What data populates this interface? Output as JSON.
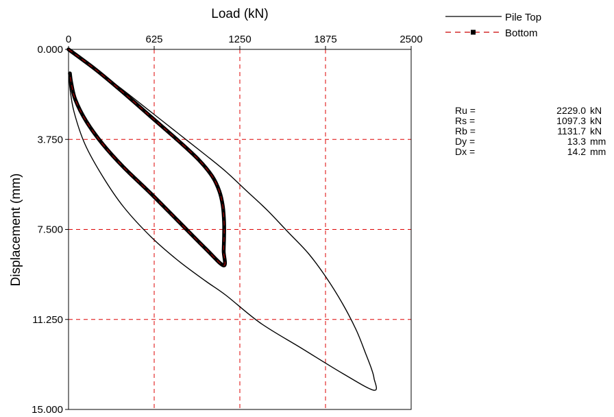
{
  "chart_data": {
    "type": "line",
    "xlabel": "Load (kN)",
    "ylabel": "Displacement (mm)",
    "x_ticks": [
      "0",
      "625",
      "1250",
      "1875",
      "2500"
    ],
    "y_ticks": [
      "0.000",
      "3.750",
      "7.500",
      "11.250",
      "15.000"
    ],
    "xlim": [
      0,
      2500
    ],
    "ylim": [
      0,
      15
    ],
    "y_inverted": true,
    "x_axis_position": "top",
    "grid": "red dashed",
    "legend_position": "top-right",
    "series": [
      {
        "name": "Pile Top",
        "color": "#000000",
        "style": "solid",
        "points": [
          [
            0,
            0.0
          ],
          [
            200,
            0.85
          ],
          [
            400,
            1.7
          ],
          [
            600,
            2.6
          ],
          [
            800,
            3.5
          ],
          [
            1000,
            4.4
          ],
          [
            1150,
            5.1
          ],
          [
            1300,
            5.9
          ],
          [
            1450,
            6.7
          ],
          [
            1600,
            7.6
          ],
          [
            1750,
            8.5
          ],
          [
            1880,
            9.5
          ],
          [
            2000,
            10.6
          ],
          [
            2100,
            11.7
          ],
          [
            2170,
            12.7
          ],
          [
            2210,
            13.3
          ],
          [
            2229,
            13.7
          ],
          [
            2229,
            14.2
          ],
          [
            2000,
            13.5
          ],
          [
            1700,
            12.45
          ],
          [
            1400,
            11.4
          ],
          [
            1150,
            10.25
          ],
          [
            1000,
            9.65
          ],
          [
            800,
            8.8
          ],
          [
            600,
            7.8
          ],
          [
            400,
            6.55
          ],
          [
            250,
            5.3
          ],
          [
            120,
            3.95
          ],
          [
            40,
            2.6
          ],
          [
            10,
            1.6
          ],
          [
            5,
            1.1
          ]
        ]
      },
      {
        "name": "Bottom",
        "color": "#cc0000",
        "style": "dashed with square markers",
        "points": [
          [
            0,
            0.0
          ],
          [
            200,
            0.85
          ],
          [
            400,
            1.8
          ],
          [
            600,
            2.8
          ],
          [
            800,
            3.8
          ],
          [
            950,
            4.6
          ],
          [
            1050,
            5.3
          ],
          [
            1100,
            5.9
          ],
          [
            1125,
            6.5
          ],
          [
            1135,
            7.2
          ],
          [
            1135,
            7.8
          ],
          [
            1132,
            8.4
          ],
          [
            1132,
            9.0
          ],
          [
            1000,
            8.3
          ],
          [
            800,
            7.15
          ],
          [
            600,
            6.0
          ],
          [
            400,
            4.9
          ],
          [
            250,
            3.95
          ],
          [
            130,
            3.0
          ],
          [
            50,
            2.1
          ],
          [
            20,
            1.4
          ],
          [
            10,
            1.0
          ]
        ]
      }
    ],
    "results": [
      {
        "label": "Ru =",
        "value": "2229.0",
        "unit": "kN"
      },
      {
        "label": "Rs =",
        "value": "1097.3",
        "unit": "kN"
      },
      {
        "label": "Rb =",
        "value": "1131.7",
        "unit": "kN"
      },
      {
        "label": "Dy =",
        "value": "13.3",
        "unit": "mm"
      },
      {
        "label": "Dx =",
        "value": "14.2",
        "unit": "mm"
      }
    ]
  }
}
